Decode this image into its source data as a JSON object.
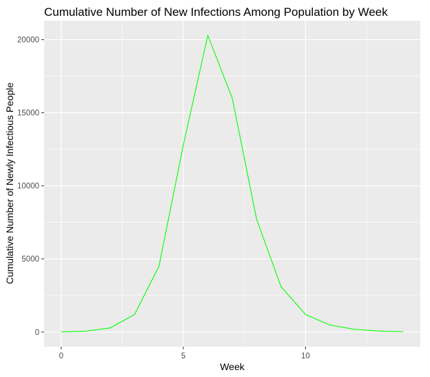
{
  "chart_data": {
    "type": "line",
    "title": "Cumulative Number of New Infections Among Population by Week",
    "xlabel": "Week",
    "ylabel": "Cumulative Number of Newly Infectious People",
    "xlim": [
      -0.7,
      14.7
    ],
    "ylim": [
      -1000,
      21300
    ],
    "x_ticks": [
      0,
      5,
      10
    ],
    "x_tick_labels": [
      "0",
      "5",
      "10"
    ],
    "y_ticks": [
      0,
      5000,
      10000,
      15000,
      20000
    ],
    "y_tick_labels": [
      "0",
      "5000",
      "10000",
      "15000",
      "20000"
    ],
    "grid": true,
    "panel_background": "#ebebeb",
    "grid_color": "#ffffff",
    "series": [
      {
        "color": "#00ff00",
        "x": [
          0,
          1,
          2,
          3,
          4,
          5,
          6,
          7,
          8,
          9,
          10,
          11,
          12,
          13,
          14
        ],
        "values": [
          10,
          60,
          280,
          1200,
          4500,
          12800,
          20300,
          16000,
          7700,
          3100,
          1200,
          480,
          190,
          70,
          20
        ]
      }
    ]
  }
}
